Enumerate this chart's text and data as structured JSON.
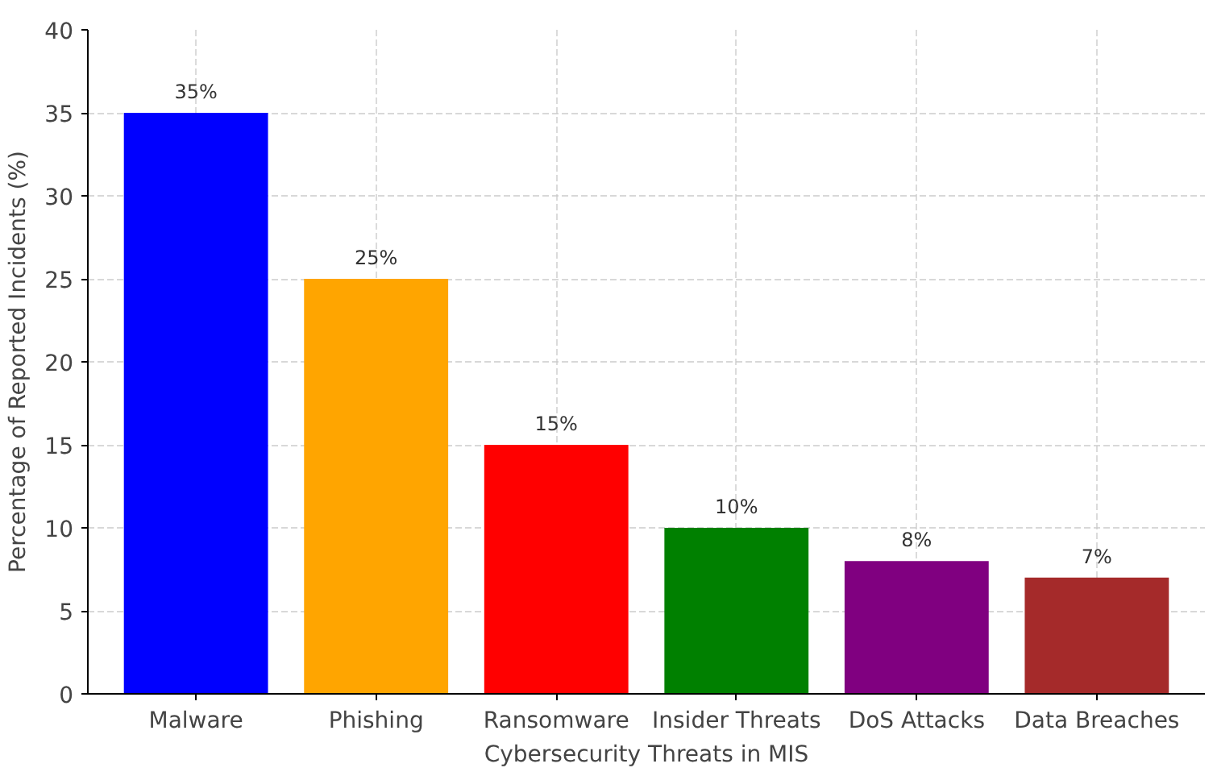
{
  "chart_data": {
    "type": "bar",
    "xlabel": "Cybersecurity Threats in MIS",
    "ylabel": "Percentage of Reported Incidents (%)",
    "categories": [
      "Malware",
      "Phishing",
      "Ransomware",
      "Insider Threats",
      "DoS Attacks",
      "Data Breaches"
    ],
    "values": [
      35,
      25,
      15,
      10,
      8,
      7
    ],
    "colors": [
      "#0000ff",
      "#ffa500",
      "#ff0000",
      "#008000",
      "#800080",
      "#a52a2a"
    ],
    "value_labels": [
      "35%",
      "25%",
      "15%",
      "10%",
      "8%",
      "7%"
    ],
    "ylim": [
      0,
      40
    ],
    "yticks": [
      0,
      5,
      10,
      15,
      20,
      25,
      30,
      35,
      40
    ],
    "grid": true
  }
}
